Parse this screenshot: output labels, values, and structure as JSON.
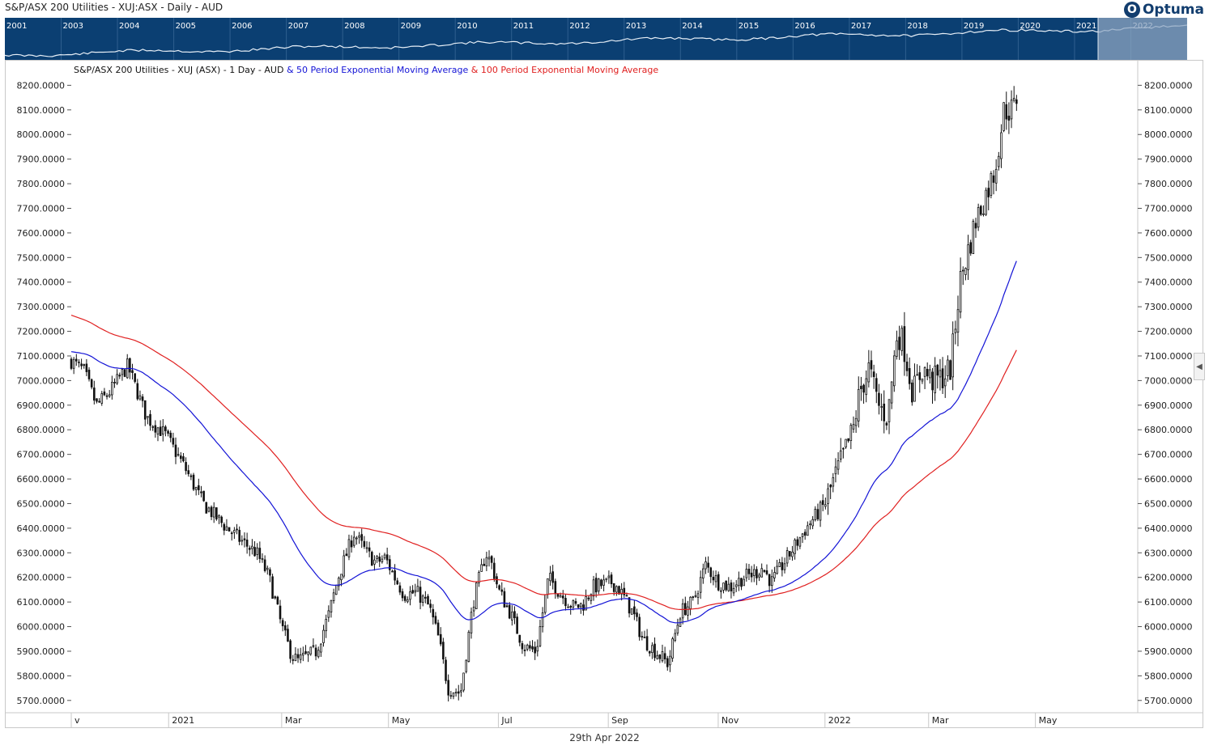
{
  "window": {
    "title": "S&P/ASX 200 Utilities - XUJ:ASX - Daily - AUD"
  },
  "brand": {
    "logo_text": "Optuma",
    "logo_mark": "O"
  },
  "navigator": {
    "years": [
      "2001",
      "2003",
      "2004",
      "2005",
      "2006",
      "2007",
      "2008",
      "2009",
      "2010",
      "2011",
      "2012",
      "2013",
      "2014",
      "2015",
      "2016",
      "2017",
      "2018",
      "2019",
      "2020",
      "2021",
      "2022"
    ],
    "bg_color": "#0b3f72",
    "selection_color": "#8ea6c2"
  },
  "footer": {
    "date": "29th Apr 2022"
  },
  "toggle": {
    "icon": "chevron-left-icon",
    "glyph": "◀"
  },
  "chart_data": {
    "type": "candlestick",
    "legend": {
      "price": "S&P/ASX 200 Utilities - XUJ (ASX) - 1 Day - AUD",
      "ema50": "& 50 Period Exponential Moving Average",
      "ema100": "& 100 Period Exponential Moving Average"
    },
    "colors": {
      "price": "#111111",
      "ema50": "#1313d6",
      "ema100": "#e02020"
    },
    "y_axis": {
      "min": 5650,
      "max": 8300,
      "decimals": 4,
      "ticks": [
        5700,
        5800,
        5900,
        6000,
        6100,
        6200,
        6300,
        6400,
        6500,
        6600,
        6700,
        6800,
        6900,
        7000,
        7100,
        7200,
        7300,
        7400,
        7500,
        7600,
        7700,
        7800,
        7900,
        8000,
        8100,
        8200
      ],
      "tick_labels": [
        "5700.0000",
        "5800.0000",
        "5900.0000",
        "6000.0000",
        "6100.0000",
        "6200.0000",
        "6300.0000",
        "6400.0000",
        "6500.0000",
        "6600.0000",
        "6700.0000",
        "6800.0000",
        "6900.0000",
        "7000.0000",
        "7100.0000",
        "7200.0000",
        "7300.0000",
        "7400.0000",
        "7500.0000",
        "7600.0000",
        "7700.0000",
        "7800.0000",
        "7900.0000",
        "8000.0000",
        "8100.0000",
        "8200.0000"
      ]
    },
    "x_axis": {
      "labels": [
        "v",
        "2021",
        "Mar",
        "May",
        "Jul",
        "Sep",
        "Nov",
        "2022",
        "Mar",
        "May"
      ],
      "label_positions": [
        0.0,
        0.31,
        0.67,
        1.01,
        1.36,
        1.71,
        2.06,
        2.4,
        2.73,
        3.07
      ]
    },
    "grid": false,
    "anchors": {
      "x": [
        0.0,
        0.04,
        0.08,
        0.12,
        0.18,
        0.24,
        0.3,
        0.36,
        0.42,
        0.48,
        0.54,
        0.59,
        0.63,
        0.67,
        0.7,
        0.72,
        0.75,
        0.78,
        0.82,
        0.85,
        0.9,
        0.94,
        0.97,
        1.0,
        1.03,
        1.06,
        1.1,
        1.14,
        1.17,
        1.2,
        1.24,
        1.28,
        1.32,
        1.34,
        1.36,
        1.4,
        1.44,
        1.48,
        1.52,
        1.56,
        1.6,
        1.63,
        1.66,
        1.69,
        1.72,
        1.74,
        1.76,
        1.79,
        1.82,
        1.86,
        1.9,
        1.94,
        1.98,
        2.02,
        2.06,
        2.1,
        2.14,
        2.18,
        2.2,
        2.23,
        2.27,
        2.3,
        2.34,
        2.37,
        2.4,
        2.43,
        2.46,
        2.49,
        2.51,
        2.54,
        2.57,
        2.6,
        2.63,
        2.65,
        2.68,
        2.71,
        2.74,
        2.77,
        2.8,
        2.83,
        2.86,
        2.88,
        2.91,
        2.94,
        2.97,
        3.0,
        3.01
      ],
      "close": [
        7080,
        7040,
        6900,
        6950,
        7060,
        6850,
        6780,
        6650,
        6500,
        6420,
        6350,
        6300,
        6200,
        6000,
        5890,
        5860,
        5880,
        5900,
        6050,
        6200,
        6380,
        6300,
        6260,
        6280,
        6200,
        6130,
        6140,
        6080,
        5950,
        5750,
        5730,
        6100,
        6300,
        6250,
        6150,
        6050,
        5920,
        5900,
        6200,
        6130,
        6080,
        6090,
        6160,
        6170,
        6180,
        6160,
        6120,
        6050,
        5950,
        5900,
        5850,
        6060,
        6100,
        6250,
        6180,
        6160,
        6200,
        6220,
        6240,
        6180,
        6260,
        6320,
        6400,
        6450,
        6500,
        6600,
        6700,
        6800,
        6950,
        7050,
        6900,
        6850,
        7200,
        7150,
        6950,
        7050,
        7000,
        7010,
        7050,
        7400,
        7550,
        7650,
        7750,
        7850,
        8100,
        8100,
        8150
      ]
    }
  }
}
